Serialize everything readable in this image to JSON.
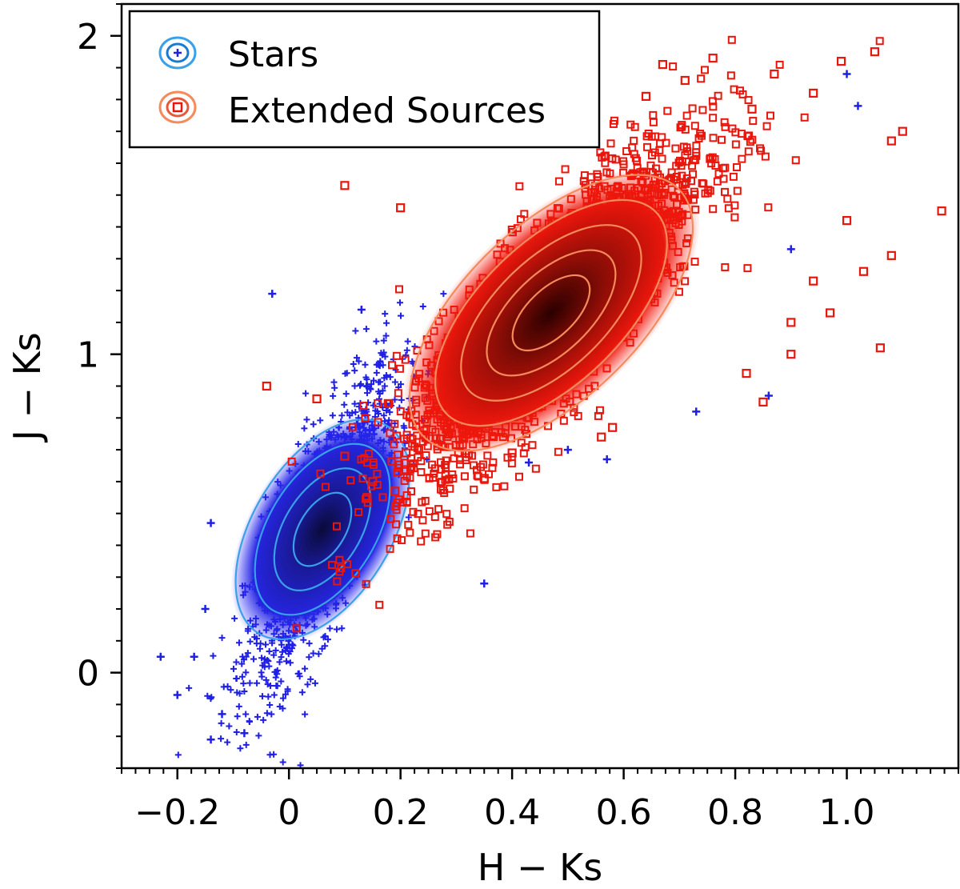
{
  "chart_data": {
    "type": "scatter",
    "title": "",
    "xlabel": "H − Ks",
    "ylabel": "J − Ks",
    "xlim": [
      -0.3,
      1.2
    ],
    "ylim": [
      -0.3,
      2.1
    ],
    "x_ticks": [
      -0.2,
      0,
      0.2,
      0.4,
      0.6,
      0.8,
      1.0
    ],
    "x_tick_labels": [
      "−0.2",
      "0",
      "0.2",
      "0.4",
      "0.6",
      "0.8",
      "1.0"
    ],
    "y_ticks": [
      0,
      1,
      2
    ],
    "y_tick_labels": [
      "0",
      "1",
      "2"
    ],
    "grid": false,
    "legend_position": "top-left",
    "series": [
      {
        "name": "Stars",
        "marker": "plus",
        "color": "#1f1fe6",
        "contour_color": "#3aa0e8",
        "density_center": [
          0.06,
          0.45
        ],
        "density_sigma": [
          0.055,
          0.2
        ],
        "density_correlation": 0.78,
        "contour_levels": [
          1,
          2,
          3,
          4
        ],
        "outliers": [
          [
            -0.23,
            0.05
          ],
          [
            -0.2,
            -0.07
          ],
          [
            -0.17,
            0.05
          ],
          [
            -0.15,
            0.2
          ],
          [
            -0.14,
            0.47
          ],
          [
            -0.14,
            -0.21
          ],
          [
            -0.12,
            -0.13
          ],
          [
            -0.08,
            -0.19
          ],
          [
            -0.03,
            1.19
          ],
          [
            0.14,
            0.9
          ],
          [
            0.13,
            1.14
          ],
          [
            0.35,
            0.28
          ],
          [
            0.57,
            0.67
          ],
          [
            0.73,
            0.82
          ],
          [
            0.86,
            0.87
          ],
          [
            0.9,
            1.33
          ],
          [
            1.0,
            1.88
          ],
          [
            1.02,
            1.78
          ],
          [
            0.43,
            0.66
          ],
          [
            0.5,
            0.7
          ]
        ]
      },
      {
        "name": "Extended Sources",
        "marker": "open-square",
        "color": "#e8160c",
        "contour_color": "#f58a5a",
        "density_center": [
          0.47,
          1.13
        ],
        "density_sigma": [
          0.11,
          0.22
        ],
        "density_correlation": 0.84,
        "contour_levels": [
          1,
          2,
          3,
          4,
          5
        ],
        "outliers": [
          [
            -0.04,
            0.9
          ],
          [
            0.1,
            1.53
          ],
          [
            0.2,
            1.46
          ],
          [
            0.05,
            0.86
          ],
          [
            0.1,
            0.68
          ],
          [
            0.15,
            0.6
          ],
          [
            0.14,
            0.55
          ],
          [
            0.19,
            0.57
          ],
          [
            0.21,
            0.69
          ],
          [
            0.35,
            0.61
          ],
          [
            0.4,
            0.69
          ],
          [
            0.58,
            0.77
          ],
          [
            0.56,
            0.74
          ],
          [
            0.82,
            0.94
          ],
          [
            0.85,
            0.85
          ],
          [
            0.9,
            1.0
          ],
          [
            0.97,
            1.13
          ],
          [
            1.06,
            1.02
          ],
          [
            1.17,
            1.45
          ],
          [
            1.08,
            1.67
          ],
          [
            1.1,
            1.7
          ],
          [
            1.05,
            1.95
          ],
          [
            1.0,
            1.42
          ],
          [
            1.03,
            1.26
          ],
          [
            1.08,
            1.31
          ],
          [
            0.94,
            1.23
          ],
          [
            0.9,
            1.1
          ],
          [
            0.94,
            1.82
          ],
          [
            0.99,
            1.92
          ],
          [
            0.67,
            1.91
          ],
          [
            0.76,
            1.93
          ],
          [
            0.87,
            1.88
          ],
          [
            0.83,
            1.77
          ],
          [
            0.71,
            1.86
          ],
          [
            0.64,
            1.81
          ]
        ]
      }
    ]
  }
}
